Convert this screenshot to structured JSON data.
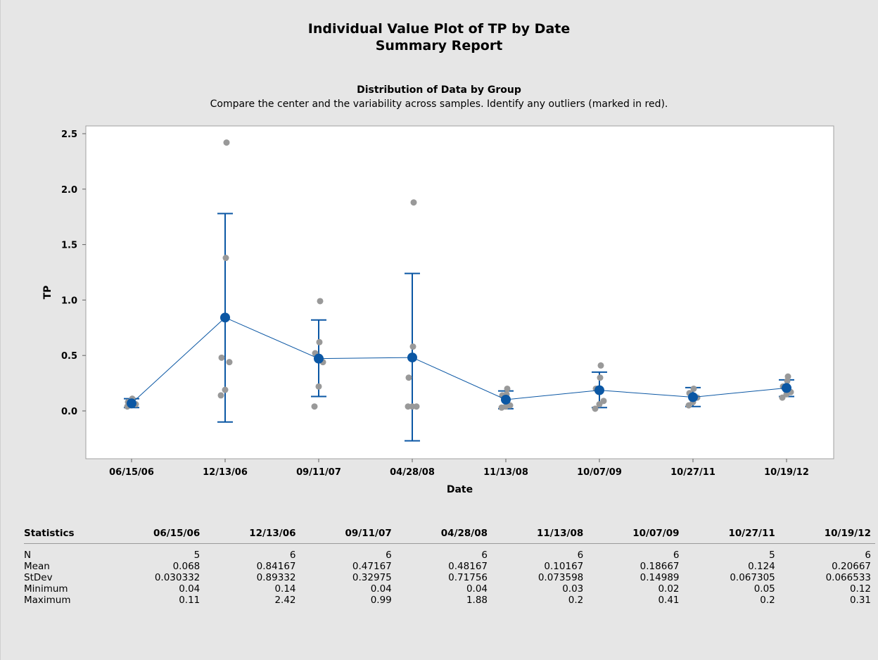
{
  "title": "Individual Value Plot of TP by Date",
  "subtitle": "Summary Report",
  "section_title": "Distribution of Data by Group",
  "section_subtitle": "Compare the center and the variability across samples. Identify any outliers (marked in red).",
  "colors": {
    "points": "#999999",
    "mean": "#0b57a4",
    "interval": "#0b57a4",
    "connect": "#0b57a4",
    "background": "#e6e6e6",
    "plot_bg": "#ffffff"
  },
  "chart_data": {
    "type": "scatter",
    "title": "Distribution of Data by Group",
    "xlabel": "Date",
    "ylabel": "TP",
    "ylim": [
      -0.3,
      2.55
    ],
    "yticks": [
      "0.0",
      "0.5",
      "1.0",
      "1.5",
      "2.0",
      "2.5"
    ],
    "categories": [
      "06/15/06",
      "12/13/06",
      "09/11/07",
      "04/28/08",
      "11/13/08",
      "10/07/09",
      "10/27/11",
      "10/19/12"
    ],
    "points": [
      [
        0.04,
        0.05,
        0.06,
        0.08,
        0.11
      ],
      [
        0.14,
        0.19,
        0.44,
        0.48,
        1.38,
        2.42
      ],
      [
        0.04,
        0.22,
        0.44,
        0.52,
        0.62,
        0.99
      ],
      [
        0.04,
        0.04,
        0.04,
        0.3,
        0.58,
        1.88
      ],
      [
        0.03,
        0.04,
        0.05,
        0.14,
        0.15,
        0.2
      ],
      [
        0.02,
        0.06,
        0.09,
        0.2,
        0.3,
        0.41
      ],
      [
        0.05,
        0.08,
        0.12,
        0.16,
        0.2
      ],
      [
        0.12,
        0.15,
        0.17,
        0.22,
        0.27,
        0.31
      ]
    ],
    "means": [
      0.068,
      0.84167,
      0.47167,
      0.48167,
      0.10167,
      0.18667,
      0.124,
      0.20667
    ],
    "interval_low": [
      0.03,
      -0.1,
      0.13,
      -0.27,
      0.02,
      0.03,
      0.04,
      0.13
    ],
    "interval_high": [
      0.11,
      1.78,
      0.82,
      1.24,
      0.18,
      0.35,
      0.21,
      0.28
    ]
  },
  "stats": {
    "header": "Statistics",
    "columns": [
      "06/15/06",
      "12/13/06",
      "09/11/07",
      "04/28/08",
      "11/13/08",
      "10/07/09",
      "10/27/11",
      "10/19/12"
    ],
    "rows": [
      {
        "label": "N",
        "values": [
          "5",
          "6",
          "6",
          "6",
          "6",
          "6",
          "5",
          "6"
        ]
      },
      {
        "label": "Mean",
        "values": [
          "0.068",
          "0.84167",
          "0.47167",
          "0.48167",
          "0.10167",
          "0.18667",
          "0.124",
          "0.20667"
        ]
      },
      {
        "label": "StDev",
        "values": [
          "0.030332",
          "0.89332",
          "0.32975",
          "0.71756",
          "0.073598",
          "0.14989",
          "0.067305",
          "0.066533"
        ]
      },
      {
        "label": "Minimum",
        "values": [
          "0.04",
          "0.14",
          "0.04",
          "0.04",
          "0.03",
          "0.02",
          "0.05",
          "0.12"
        ]
      },
      {
        "label": "Maximum",
        "values": [
          "0.11",
          "2.42",
          "0.99",
          "1.88",
          "0.2",
          "0.41",
          "0.2",
          "0.31"
        ]
      }
    ]
  }
}
